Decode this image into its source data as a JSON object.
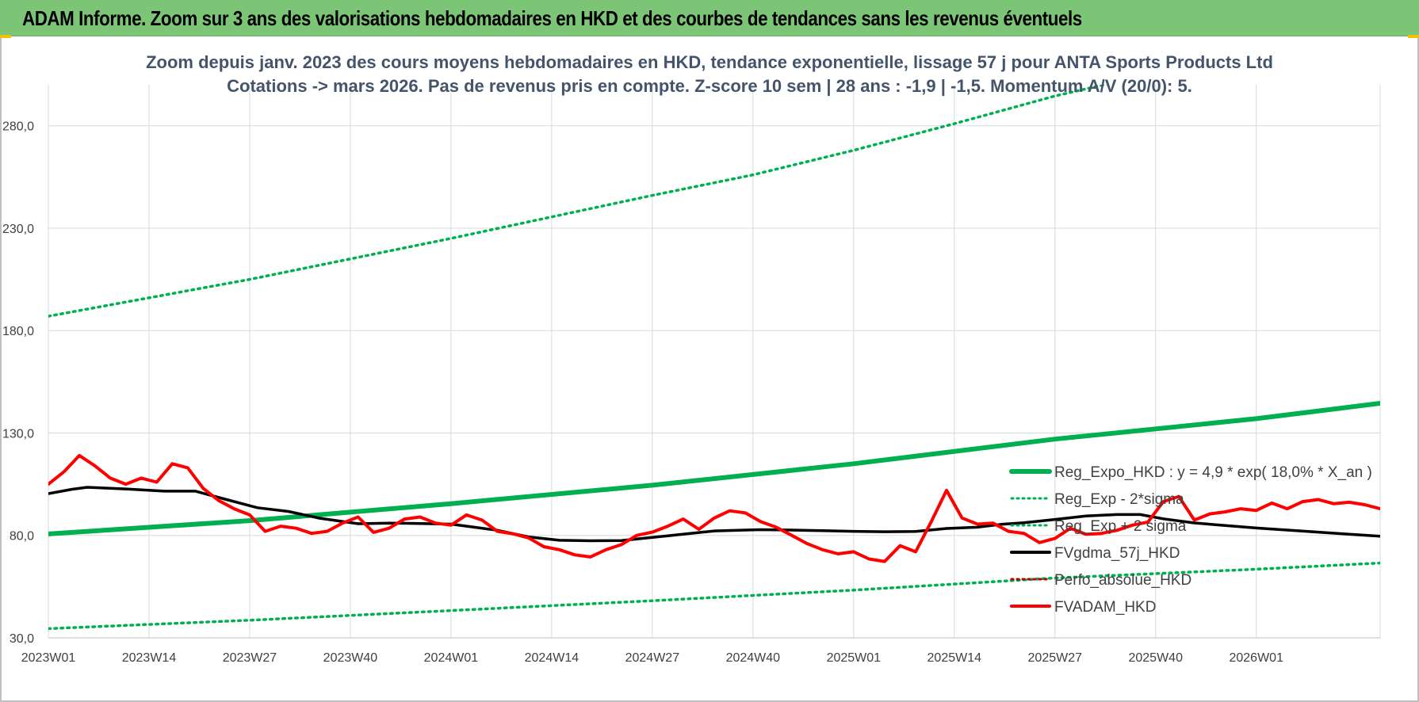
{
  "banner": {
    "title": "ADAM Informe. Zoom sur 3 ans des valorisations hebdomadaires en HKD et des courbes de tendances sans les revenus éventuels"
  },
  "colors": {
    "banner_bg": "#7cc576",
    "trend_green": "#00b050",
    "price_red": "#ff0000",
    "ma_black": "#000000",
    "perfo_red": "#c00000"
  },
  "chart_data": {
    "type": "line",
    "title_lines": [
      "Zoom depuis janv. 2023 des cours moyens hebdomadaires en HKD, tendance exponentielle, lissage 57 j pour ANTA Sports Products Ltd",
      "Cotations -> mars 2026. Pas de revenus pris en compte. Z-score 10 sem | 28 ans : -1,9 | -1,5. Momentum A/V (20/0): 5."
    ],
    "ylim": [
      30,
      300
    ],
    "y_ticks": [
      "280,0",
      "230,0",
      "180,0",
      "130,0",
      "80,0",
      "30,0"
    ],
    "y_tick_values": [
      280,
      230,
      180,
      130,
      80,
      30
    ],
    "x_ticks": [
      "2023W01",
      "2023W14",
      "2023W27",
      "2023W40",
      "2024W01",
      "2024W14",
      "2024W27",
      "2024W40",
      "2025W01",
      "2025W14",
      "2025W27",
      "2025W40",
      "2026W01"
    ],
    "x_tick_weeks": [
      0,
      13,
      26,
      39,
      52,
      65,
      78,
      91,
      104,
      117,
      130,
      143,
      156
    ],
    "x_max_week": 172,
    "grid": true,
    "legend_position": "right",
    "series": [
      {
        "name": "Reg_Expo_HKD : y = 4,9 * exp( 18,0% *  X_an )",
        "style": "solid",
        "color": "#00b050",
        "points": [
          [
            0,
            80.7
          ],
          [
            26,
            87.2
          ],
          [
            52,
            95.5
          ],
          [
            78,
            104.5
          ],
          [
            104,
            115
          ],
          [
            130,
            127
          ],
          [
            156,
            137
          ],
          [
            172,
            144.5
          ]
        ]
      },
      {
        "name": "Reg_Exp - 2*sigma",
        "style": "dotted",
        "color": "#00b050",
        "points": [
          [
            0,
            34.5
          ],
          [
            26,
            38.6
          ],
          [
            52,
            43.3
          ],
          [
            78,
            48.1
          ],
          [
            104,
            53.3
          ],
          [
            130,
            59.2
          ],
          [
            156,
            63.5
          ],
          [
            172,
            66.5
          ]
        ]
      },
      {
        "name": "Reg_Exp + 2 sigma",
        "style": "dotted",
        "color": "#00b050",
        "points": [
          [
            0,
            187
          ],
          [
            26,
            205
          ],
          [
            52,
            225
          ],
          [
            78,
            246
          ],
          [
            91,
            256
          ],
          [
            104,
            268
          ],
          [
            117,
            281
          ],
          [
            130,
            294.5
          ],
          [
            142,
            305
          ],
          [
            172,
            328
          ]
        ]
      },
      {
        "name": "FVgdma_57j_HKD",
        "style": "solid",
        "color": "#000000",
        "points": [
          [
            0,
            100.4
          ],
          [
            3,
            102.5
          ],
          [
            5,
            103.5
          ],
          [
            10,
            102.7
          ],
          [
            15,
            101.6
          ],
          [
            19,
            101.6
          ],
          [
            23,
            97.5
          ],
          [
            27,
            93.5
          ],
          [
            31,
            91.7
          ],
          [
            35,
            88.4
          ],
          [
            40,
            85.7
          ],
          [
            44,
            86
          ],
          [
            48,
            85.8
          ],
          [
            52,
            85.5
          ],
          [
            55,
            84
          ],
          [
            58,
            82.5
          ],
          [
            62,
            79.3
          ],
          [
            66,
            77.6
          ],
          [
            70,
            77.4
          ],
          [
            74,
            77.5
          ],
          [
            80,
            79.8
          ],
          [
            84,
            81.4
          ],
          [
            86,
            82.2
          ],
          [
            90,
            82.6
          ],
          [
            92,
            82.8
          ],
          [
            96,
            82.6
          ],
          [
            100,
            82.3
          ],
          [
            104,
            82
          ],
          [
            108,
            81.8
          ],
          [
            112,
            81.9
          ],
          [
            116,
            83.4
          ],
          [
            120,
            84
          ],
          [
            123,
            85.4
          ],
          [
            126,
            86.2
          ],
          [
            130,
            87.8
          ],
          [
            134,
            89.5
          ],
          [
            138,
            90.2
          ],
          [
            141,
            90.2
          ],
          [
            144,
            88.1
          ],
          [
            148,
            86.1
          ],
          [
            152,
            84.8
          ],
          [
            156,
            83.6
          ],
          [
            160,
            82.6
          ],
          [
            164,
            81.6
          ],
          [
            168,
            80.6
          ],
          [
            172,
            79.6
          ]
        ]
      },
      {
        "name": "Perfo_absolue_HKD",
        "style": "dotted",
        "color": "#c00000",
        "points": []
      },
      {
        "name": "FVADAM_HKD",
        "style": "solid",
        "color": "#ff0000",
        "points": [
          [
            0,
            105
          ],
          [
            2,
            111
          ],
          [
            4,
            119
          ],
          [
            6,
            114
          ],
          [
            8,
            108
          ],
          [
            10,
            105
          ],
          [
            12,
            108
          ],
          [
            14,
            106
          ],
          [
            16,
            115
          ],
          [
            18,
            113
          ],
          [
            20,
            103
          ],
          [
            22,
            97
          ],
          [
            24,
            93
          ],
          [
            26,
            90
          ],
          [
            28,
            82
          ],
          [
            30,
            84.5
          ],
          [
            32,
            83.5
          ],
          [
            34,
            81
          ],
          [
            36,
            82
          ],
          [
            38,
            86
          ],
          [
            40,
            89
          ],
          [
            42,
            81.5
          ],
          [
            44,
            83.5
          ],
          [
            46,
            88
          ],
          [
            48,
            89
          ],
          [
            50,
            86
          ],
          [
            52,
            85
          ],
          [
            54,
            90
          ],
          [
            56,
            87.5
          ],
          [
            58,
            82
          ],
          [
            60,
            80.8
          ],
          [
            62,
            78.8
          ],
          [
            64,
            74.5
          ],
          [
            66,
            73
          ],
          [
            68,
            70.5
          ],
          [
            70,
            69.5
          ],
          [
            72,
            73
          ],
          [
            74,
            75.5
          ],
          [
            76,
            80
          ],
          [
            78,
            81.6
          ],
          [
            80,
            84.5
          ],
          [
            82,
            88
          ],
          [
            84,
            83
          ],
          [
            86,
            88.5
          ],
          [
            88,
            92
          ],
          [
            90,
            91
          ],
          [
            92,
            86.7
          ],
          [
            94,
            84
          ],
          [
            96,
            80
          ],
          [
            98,
            76
          ],
          [
            100,
            73
          ],
          [
            102,
            71
          ],
          [
            104,
            72
          ],
          [
            106,
            68.5
          ],
          [
            108,
            67.3
          ],
          [
            110,
            75
          ],
          [
            112,
            72
          ],
          [
            114,
            86.5
          ],
          [
            116,
            102
          ],
          [
            118,
            88.5
          ],
          [
            120,
            85.5
          ],
          [
            122,
            86
          ],
          [
            124,
            82
          ],
          [
            126,
            81
          ],
          [
            128,
            76.5
          ],
          [
            130,
            78.5
          ],
          [
            132,
            83.5
          ],
          [
            134,
            80.5
          ],
          [
            136,
            81
          ],
          [
            138,
            82.5
          ],
          [
            140,
            85
          ],
          [
            142,
            86.5
          ],
          [
            144,
            96.5
          ],
          [
            146,
            99
          ],
          [
            148,
            87.5
          ],
          [
            150,
            90.5
          ],
          [
            152,
            91.5
          ],
          [
            154,
            93
          ],
          [
            156,
            92.2
          ],
          [
            158,
            95.8
          ],
          [
            160,
            93
          ],
          [
            162,
            96.5
          ],
          [
            164,
            97.5
          ],
          [
            166,
            95.5
          ],
          [
            168,
            96.2
          ],
          [
            170,
            95
          ],
          [
            172,
            93
          ]
        ]
      }
    ]
  }
}
